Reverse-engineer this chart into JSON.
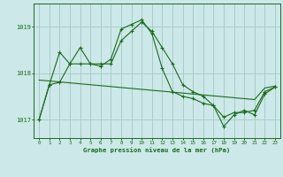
{
  "title": "Graphe pression niveau de la mer (hPa)",
  "background_color": "#cce8e8",
  "grid_color": "#aacccc",
  "line_color": "#1a6b1a",
  "xlim_min": -0.5,
  "xlim_max": 23.5,
  "ylim_min": 1016.6,
  "ylim_max": 1019.5,
  "yticks": [
    1017,
    1018,
    1019
  ],
  "xticks": [
    0,
    1,
    2,
    3,
    4,
    5,
    6,
    7,
    8,
    9,
    10,
    11,
    12,
    13,
    14,
    15,
    16,
    17,
    18,
    19,
    20,
    21,
    22,
    23
  ],
  "series_zigzag": [
    1017.0,
    1017.75,
    1018.45,
    1018.2,
    1018.55,
    1018.2,
    1018.15,
    1018.3,
    1018.95,
    1019.05,
    1019.15,
    1018.85,
    1018.1,
    1017.6,
    1017.5,
    1017.45,
    1017.35,
    1017.3,
    1016.85,
    1017.1,
    1017.2,
    1017.1,
    1017.55,
    1017.7
  ],
  "series_mid": [
    1017.0,
    1017.75,
    1017.8,
    1018.2,
    1018.2,
    1018.2,
    1018.2,
    1018.2,
    1018.7,
    1018.9,
    1019.1,
    1018.9,
    1018.55,
    1018.2,
    1017.75,
    1017.6,
    1017.5,
    1017.3,
    1017.05,
    1017.15,
    1017.15,
    1017.2,
    1017.6,
    1017.7
  ],
  "series_trend": [
    1017.85,
    1017.83,
    1017.81,
    1017.79,
    1017.77,
    1017.75,
    1017.73,
    1017.71,
    1017.69,
    1017.67,
    1017.65,
    1017.63,
    1017.61,
    1017.59,
    1017.57,
    1017.55,
    1017.53,
    1017.51,
    1017.49,
    1017.47,
    1017.45,
    1017.43,
    1017.68,
    1017.72
  ]
}
